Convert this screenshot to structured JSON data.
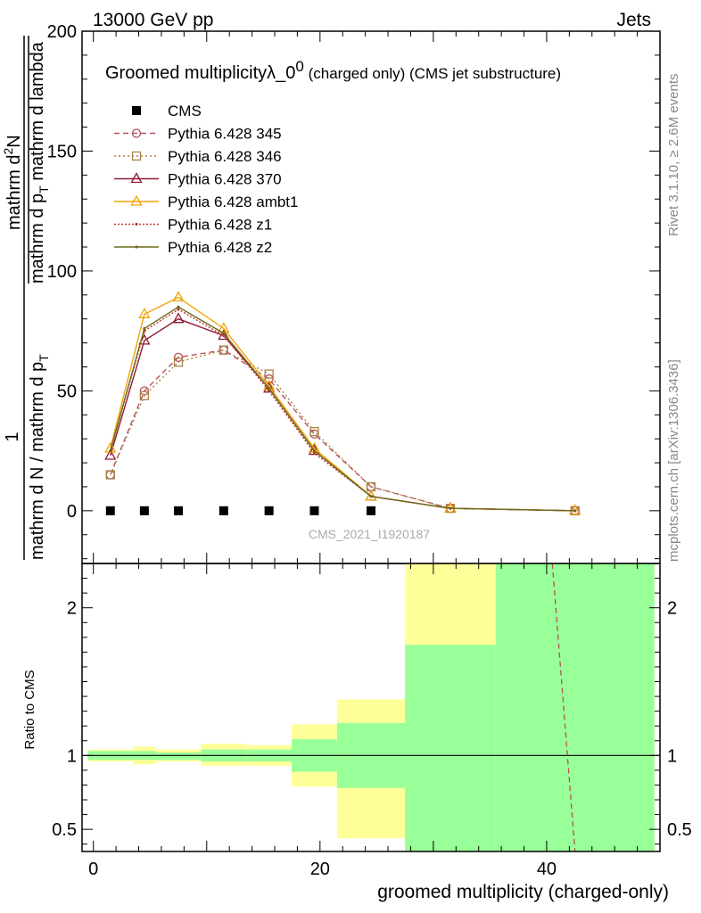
{
  "header": {
    "left": "13000 GeV pp",
    "right": "Jets"
  },
  "title": {
    "main": "Groomed multiplicity",
    "lambda": "λ_0",
    "superscript": "0",
    "tail": " (charged only) (CMS jet substructure)"
  },
  "side_labels": {
    "rivet": "Rivet 3.1.10, ≥ 2.6M events",
    "mcplots": "mcplots.cern.ch [arXiv:1306.3436]"
  },
  "watermark": "CMS_2021_I1920187",
  "y_label_parts": {
    "numerator_one": "1",
    "denominator": "mathrm d N / mathrm d p",
    "denominator_sub": "T",
    "right_numerator": "mathrm d",
    "right_numerator_sup": "2",
    "right_numerator_tail": "N",
    "right_denominator": "mathrm d p",
    "right_denominator_sub": "T",
    "right_denominator_tail": " mathrm d lambda"
  },
  "ratio_label": "Ratio to CMS",
  "x_label": "groomed multiplicity (charged-only)",
  "chart_data": {
    "type": "line",
    "main": {
      "xlim": [
        -1,
        50
      ],
      "ylim": [
        -22,
        200
      ],
      "yticks": [
        0,
        50,
        100,
        150,
        200
      ],
      "xticks": [
        0,
        20,
        40
      ],
      "data": {
        "name": "CMS",
        "x": [
          1.5,
          4.5,
          7.5,
          11.5,
          15.5,
          19.5,
          24.5
        ],
        "y": [
          0,
          0,
          0,
          0,
          0,
          0,
          0
        ],
        "color": "#000000",
        "marker": "square"
      },
      "series": [
        {
          "name": "Pythia 6.428 345",
          "color": "#b5525a",
          "dash": "6,4",
          "marker": "circle",
          "x": [
            1.5,
            4.5,
            7.5,
            11.5,
            15.5,
            19.5,
            24.5,
            31.5,
            42.5
          ],
          "y": [
            15,
            50,
            64,
            67,
            55,
            32,
            10,
            1,
            0
          ]
        },
        {
          "name": "Pythia 6.428 346",
          "color": "#a8844a",
          "dash": "2,3",
          "marker": "square-open",
          "x": [
            1.5,
            4.5,
            7.5,
            11.5,
            15.5,
            19.5,
            24.5,
            31.5,
            42.5
          ],
          "y": [
            15,
            48,
            62,
            67,
            57,
            33,
            10,
            1,
            0
          ]
        },
        {
          "name": "Pythia 6.428 370",
          "color": "#8e1a34",
          "dash": "",
          "marker": "triangle",
          "x": [
            1.5,
            4.5,
            7.5,
            11.5,
            15.5,
            19.5,
            24.5,
            31.5,
            42.5
          ],
          "y": [
            23,
            71,
            80,
            73,
            51,
            25,
            6,
            1,
            0
          ]
        },
        {
          "name": "Pythia 6.428 ambt1",
          "color": "#f0a30a",
          "dash": "",
          "marker": "triangle",
          "x": [
            1.5,
            4.5,
            7.5,
            11.5,
            15.5,
            19.5,
            24.5,
            31.5,
            42.5
          ],
          "y": [
            26,
            82,
            89,
            76,
            52,
            26,
            6,
            1,
            0
          ]
        },
        {
          "name": "Pythia 6.428 z1",
          "color": "#c0392b",
          "dash": "2,2",
          "marker": "dot",
          "x": [
            1.5,
            4.5,
            7.5,
            11.5,
            15.5,
            19.5,
            24.5,
            31.5,
            42.5
          ],
          "y": [
            25,
            75,
            84,
            73,
            50,
            24,
            6,
            1,
            0
          ]
        },
        {
          "name": "Pythia 6.428 z2",
          "color": "#6b6b1e",
          "dash": "",
          "marker": "dot",
          "x": [
            1.5,
            4.5,
            7.5,
            11.5,
            15.5,
            19.5,
            24.5,
            31.5,
            42.5
          ],
          "y": [
            25,
            76,
            85,
            74,
            51,
            25,
            6,
            1,
            0
          ]
        }
      ]
    },
    "ratio": {
      "ylim": [
        0.35,
        2.3
      ],
      "yticks": [
        0.5,
        1,
        2
      ],
      "bands": [
        {
          "x0": -0.5,
          "x1": 3.5,
          "g": [
            0.97,
            1.03
          ],
          "y": [
            0.96,
            1.04
          ]
        },
        {
          "x0": 3.5,
          "x1": 5.5,
          "g": [
            0.97,
            1.03
          ],
          "y": [
            0.94,
            1.06
          ]
        },
        {
          "x0": 5.5,
          "x1": 9.5,
          "g": [
            0.97,
            1.02
          ],
          "y": [
            0.96,
            1.04
          ]
        },
        {
          "x0": 9.5,
          "x1": 13.5,
          "g": [
            0.96,
            1.04
          ],
          "y": [
            0.93,
            1.08
          ]
        },
        {
          "x0": 13.5,
          "x1": 17.5,
          "g": [
            0.96,
            1.04
          ],
          "y": [
            0.93,
            1.07
          ]
        },
        {
          "x0": 17.5,
          "x1": 21.5,
          "g": [
            0.89,
            1.11
          ],
          "y": [
            0.79,
            1.21
          ]
        },
        {
          "x0": 21.5,
          "x1": 27.5,
          "g": [
            0.78,
            1.22
          ],
          "y": [
            0.44,
            1.38
          ]
        },
        {
          "x0": 27.5,
          "x1": 35.5,
          "g": [
            0.2,
            1.75
          ],
          "y": [
            0.2,
            2.3
          ]
        },
        {
          "x0": 35.5,
          "x1": 49.5,
          "g": [
            0.2,
            2.3
          ],
          "y": [
            0.2,
            2.3
          ]
        }
      ],
      "green": "#99ff99",
      "yellow": "#ffff99",
      "dashed_line": {
        "color": "#b5525a",
        "x": [
          40.5,
          42.5
        ],
        "y": [
          2.3,
          0.35
        ]
      }
    }
  }
}
